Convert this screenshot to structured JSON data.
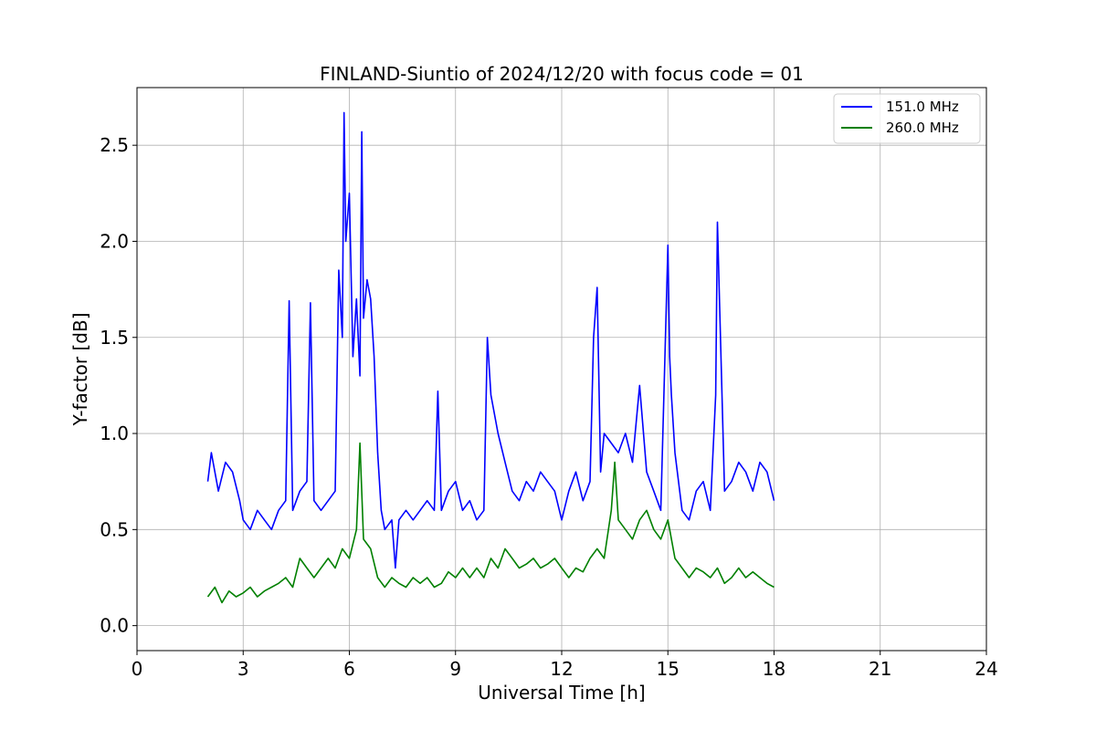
{
  "chart_data": {
    "type": "line",
    "title": "FINLAND-Siuntio of 2024/12/20 with focus code = 01",
    "xlabel": "Universal Time [h]",
    "ylabel": "Y-factor [dB]",
    "xlim": [
      0,
      24
    ],
    "ylim": [
      -0.13,
      2.8
    ],
    "xticks": [
      0,
      3,
      6,
      9,
      12,
      15,
      18,
      21,
      24
    ],
    "yticks": [
      0.0,
      0.5,
      1.0,
      1.5,
      2.0,
      2.5
    ],
    "xtick_labels": [
      "0",
      "3",
      "6",
      "9",
      "12",
      "15",
      "18",
      "21",
      "24"
    ],
    "ytick_labels": [
      "0.0",
      "0.5",
      "1.0",
      "1.5",
      "2.0",
      "2.5"
    ],
    "grid": true,
    "legend_position": "top-right",
    "series": [
      {
        "name": "151.0 MHz",
        "color": "#0000ff",
        "x": [
          2.0,
          2.1,
          2.3,
          2.5,
          2.7,
          2.9,
          3.0,
          3.2,
          3.4,
          3.6,
          3.8,
          4.0,
          4.2,
          4.3,
          4.4,
          4.6,
          4.8,
          4.9,
          5.0,
          5.2,
          5.4,
          5.6,
          5.7,
          5.8,
          5.85,
          5.9,
          6.0,
          6.1,
          6.2,
          6.3,
          6.35,
          6.4,
          6.5,
          6.6,
          6.7,
          6.8,
          6.9,
          7.0,
          7.2,
          7.3,
          7.4,
          7.6,
          7.8,
          8.0,
          8.2,
          8.4,
          8.5,
          8.6,
          8.8,
          9.0,
          9.2,
          9.4,
          9.6,
          9.8,
          9.9,
          10.0,
          10.2,
          10.4,
          10.6,
          10.8,
          11.0,
          11.2,
          11.4,
          11.6,
          11.8,
          12.0,
          12.2,
          12.4,
          12.6,
          12.8,
          12.9,
          13.0,
          13.1,
          13.2,
          13.4,
          13.6,
          13.8,
          14.0,
          14.2,
          14.4,
          14.6,
          14.8,
          15.0,
          15.05,
          15.1,
          15.2,
          15.4,
          15.6,
          15.8,
          16.0,
          16.2,
          16.35,
          16.4,
          16.6,
          16.8,
          17.0,
          17.2,
          17.4,
          17.6,
          17.8,
          18.0
        ],
        "values": [
          0.75,
          0.9,
          0.7,
          0.85,
          0.8,
          0.65,
          0.55,
          0.5,
          0.6,
          0.55,
          0.5,
          0.6,
          0.65,
          1.69,
          0.6,
          0.7,
          0.75,
          1.68,
          0.65,
          0.6,
          0.65,
          0.7,
          1.85,
          1.5,
          2.67,
          2.0,
          2.25,
          1.4,
          1.7,
          1.3,
          2.57,
          1.6,
          1.8,
          1.7,
          1.4,
          0.9,
          0.6,
          0.5,
          0.55,
          0.3,
          0.55,
          0.6,
          0.55,
          0.6,
          0.65,
          0.6,
          1.22,
          0.6,
          0.7,
          0.75,
          0.6,
          0.65,
          0.55,
          0.6,
          1.5,
          1.2,
          1.0,
          0.85,
          0.7,
          0.65,
          0.75,
          0.7,
          0.8,
          0.75,
          0.7,
          0.55,
          0.7,
          0.8,
          0.65,
          0.75,
          1.5,
          1.76,
          0.8,
          1.0,
          0.95,
          0.9,
          1.0,
          0.85,
          1.25,
          0.8,
          0.7,
          0.6,
          1.98,
          1.4,
          1.2,
          0.9,
          0.6,
          0.55,
          0.7,
          0.75,
          0.6,
          1.2,
          2.1,
          0.7,
          0.75,
          0.85,
          0.8,
          0.7,
          0.85,
          0.8,
          0.65
        ]
      },
      {
        "name": "260.0 MHz",
        "color": "#008000",
        "x": [
          2.0,
          2.2,
          2.4,
          2.6,
          2.8,
          3.0,
          3.2,
          3.4,
          3.6,
          3.8,
          4.0,
          4.2,
          4.4,
          4.6,
          4.8,
          5.0,
          5.2,
          5.4,
          5.6,
          5.8,
          6.0,
          6.2,
          6.3,
          6.4,
          6.6,
          6.8,
          7.0,
          7.2,
          7.4,
          7.6,
          7.8,
          8.0,
          8.2,
          8.4,
          8.6,
          8.8,
          9.0,
          9.2,
          9.4,
          9.6,
          9.8,
          10.0,
          10.2,
          10.4,
          10.6,
          10.8,
          11.0,
          11.2,
          11.4,
          11.6,
          11.8,
          12.0,
          12.2,
          12.4,
          12.6,
          12.8,
          13.0,
          13.2,
          13.4,
          13.5,
          13.6,
          13.8,
          14.0,
          14.2,
          14.4,
          14.6,
          14.8,
          15.0,
          15.2,
          15.4,
          15.6,
          15.8,
          16.0,
          16.2,
          16.4,
          16.6,
          16.8,
          17.0,
          17.2,
          17.4,
          17.6,
          17.8,
          18.0
        ],
        "values": [
          0.15,
          0.2,
          0.12,
          0.18,
          0.15,
          0.17,
          0.2,
          0.15,
          0.18,
          0.2,
          0.22,
          0.25,
          0.2,
          0.35,
          0.3,
          0.25,
          0.3,
          0.35,
          0.3,
          0.4,
          0.35,
          0.5,
          0.95,
          0.45,
          0.4,
          0.25,
          0.2,
          0.25,
          0.22,
          0.2,
          0.25,
          0.22,
          0.25,
          0.2,
          0.22,
          0.28,
          0.25,
          0.3,
          0.25,
          0.3,
          0.25,
          0.35,
          0.3,
          0.4,
          0.35,
          0.3,
          0.32,
          0.35,
          0.3,
          0.32,
          0.35,
          0.3,
          0.25,
          0.3,
          0.28,
          0.35,
          0.4,
          0.35,
          0.6,
          0.85,
          0.55,
          0.5,
          0.45,
          0.55,
          0.6,
          0.5,
          0.45,
          0.55,
          0.35,
          0.3,
          0.25,
          0.3,
          0.28,
          0.25,
          0.3,
          0.22,
          0.25,
          0.3,
          0.25,
          0.28,
          0.25,
          0.22,
          0.2
        ]
      }
    ]
  }
}
